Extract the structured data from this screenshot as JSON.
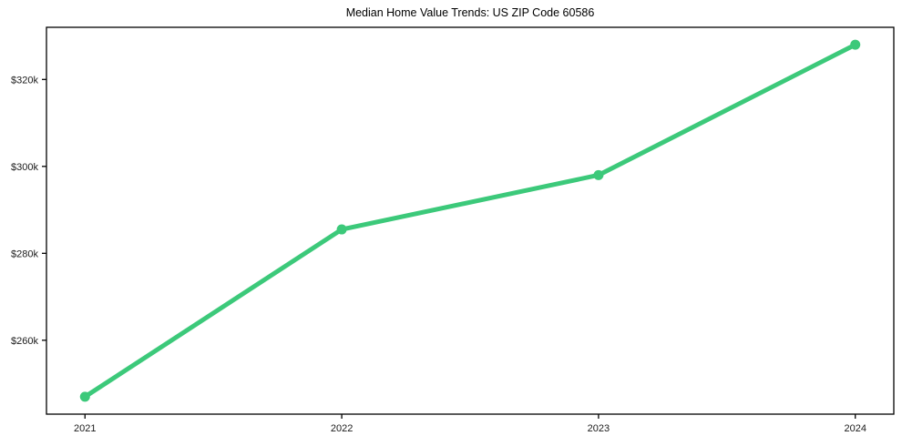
{
  "figure": {
    "background_color": "#ffffff"
  },
  "chart_data": {
    "type": "line",
    "title": "Median Home Value Trends: US ZIP Code 60586",
    "x": [
      2021,
      2022,
      2023,
      2024
    ],
    "x_tick_labels": [
      "2021",
      "2022",
      "2023",
      "2024"
    ],
    "series": [
      {
        "name": "Median Home Value",
        "values": [
          247000,
          285500,
          298000,
          328000
        ],
        "color": "#3cc97a",
        "marker": "circle",
        "marker_radius": 5.5,
        "line_width": 5
      }
    ],
    "y_tick_values": [
      260000,
      280000,
      300000,
      320000
    ],
    "y_tick_labels": [
      "$260k",
      "$280k",
      "$300k",
      "$320k"
    ],
    "xlabel": "",
    "ylabel": "",
    "xlim": [
      2020.85,
      2024.15
    ],
    "ylim": [
      243000,
      332000
    ],
    "grid": false,
    "legend_position": "none",
    "axis_color": "#000000",
    "tick_label_color": "#1a1a1a"
  }
}
